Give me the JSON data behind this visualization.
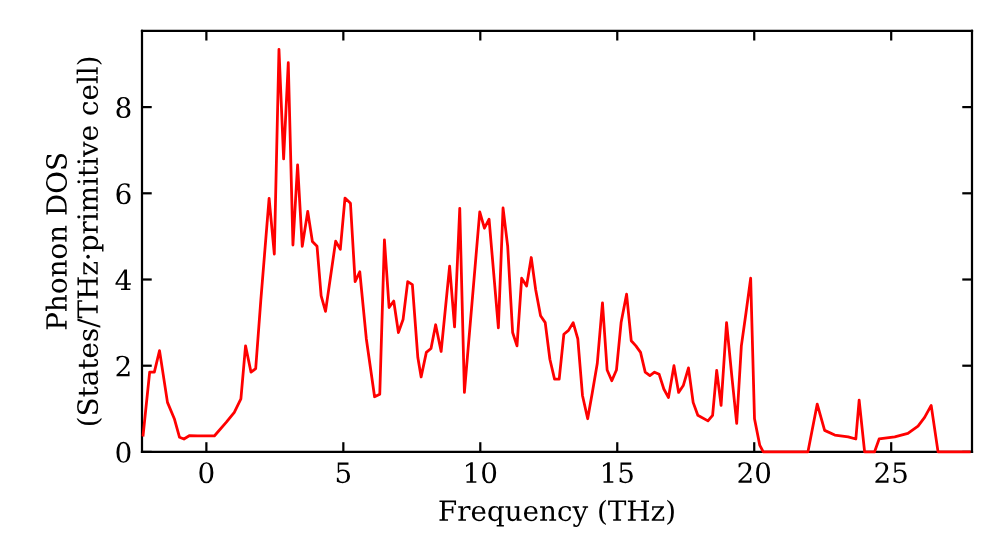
{
  "chart_data": {
    "type": "line",
    "xlabel": "Frequency (THz)",
    "ylabel": "Phonon DOS\n(States/THz·primitive cell)",
    "xlim": [
      -2.35,
      27.95
    ],
    "ylim": [
      0,
      9.77
    ],
    "xticks": [
      0,
      5,
      10,
      15,
      20,
      25
    ],
    "yticks": [
      0,
      2,
      4,
      6,
      8
    ],
    "grid": false,
    "legend": false,
    "marker": "none",
    "line_style": "solid",
    "series": [
      {
        "color": "#ff0000",
        "x": [
          -2.31,
          -2.07,
          -1.9,
          -1.71,
          -1.42,
          -1.17,
          -0.98,
          -0.82,
          -0.61,
          -0.32,
          0.29,
          0.73,
          1.02,
          1.26,
          1.43,
          1.63,
          1.8,
          1.99,
          2.29,
          2.48,
          2.65,
          2.82,
          2.99,
          3.16,
          3.33,
          3.5,
          3.7,
          3.87,
          4.04,
          4.19,
          4.35,
          4.72,
          4.89,
          5.06,
          5.26,
          5.43,
          5.6,
          5.84,
          6.14,
          6.33,
          6.5,
          6.67,
          6.84,
          7.01,
          7.18,
          7.35,
          7.52,
          7.72,
          7.84,
          8.03,
          8.2,
          8.37,
          8.57,
          8.88,
          9.06,
          9.25,
          9.42,
          9.98,
          10.15,
          10.32,
          10.66,
          10.83,
          11.0,
          11.18,
          11.34,
          11.51,
          11.69,
          11.86,
          12.02,
          12.2,
          12.37,
          12.54,
          12.71,
          12.88,
          13.05,
          13.22,
          13.39,
          13.56,
          13.73,
          13.92,
          14.09,
          14.27,
          14.46,
          14.63,
          14.8,
          14.97,
          15.14,
          15.34,
          15.51,
          15.68,
          15.85,
          16.02,
          16.19,
          16.36,
          16.53,
          16.7,
          16.87,
          17.07,
          17.24,
          17.41,
          17.6,
          17.77,
          17.94,
          18.31,
          18.48,
          18.63,
          18.79,
          18.99,
          19.18,
          19.36,
          19.53,
          19.7,
          19.87,
          20.01,
          20.2,
          20.33,
          21.96,
          22.3,
          22.57,
          22.94,
          23.43,
          23.71,
          23.83,
          24.03,
          24.39,
          24.56,
          25.13,
          25.61,
          25.98,
          26.22,
          26.46,
          26.71,
          27.85
        ],
        "values": [
          0.39,
          1.85,
          1.85,
          2.35,
          1.15,
          0.77,
          0.34,
          0.3,
          0.38,
          0.37,
          0.37,
          0.69,
          0.92,
          1.23,
          2.46,
          1.85,
          1.93,
          3.54,
          5.88,
          4.59,
          9.34,
          6.8,
          9.03,
          4.8,
          6.66,
          4.77,
          5.58,
          4.88,
          4.77,
          3.62,
          3.26,
          4.89,
          4.7,
          5.89,
          5.77,
          3.95,
          4.18,
          2.62,
          1.28,
          1.34,
          4.92,
          3.35,
          3.5,
          2.77,
          3.07,
          3.95,
          3.88,
          2.19,
          1.74,
          2.31,
          2.4,
          2.95,
          2.33,
          4.31,
          2.9,
          5.65,
          1.38,
          5.57,
          5.19,
          5.4,
          2.88,
          5.66,
          4.77,
          2.77,
          2.46,
          4.03,
          3.85,
          4.51,
          3.77,
          3.16,
          3.0,
          2.15,
          1.69,
          1.69,
          2.73,
          2.82,
          3.0,
          2.62,
          1.31,
          0.77,
          1.38,
          2.05,
          3.46,
          1.9,
          1.65,
          1.9,
          3.0,
          3.66,
          2.58,
          2.46,
          2.31,
          1.85,
          1.77,
          1.85,
          1.8,
          1.46,
          1.26,
          2.0,
          1.38,
          1.54,
          1.95,
          1.15,
          0.85,
          0.72,
          0.85,
          1.89,
          1.08,
          3.0,
          1.77,
          0.66,
          2.46,
          3.23,
          4.03,
          0.77,
          0.16,
          0.0,
          0.0,
          1.11,
          0.5,
          0.39,
          0.35,
          0.3,
          1.2,
          0.0,
          0.0,
          0.3,
          0.35,
          0.43,
          0.6,
          0.8,
          1.08,
          0.0,
          0.0
        ]
      }
    ]
  }
}
